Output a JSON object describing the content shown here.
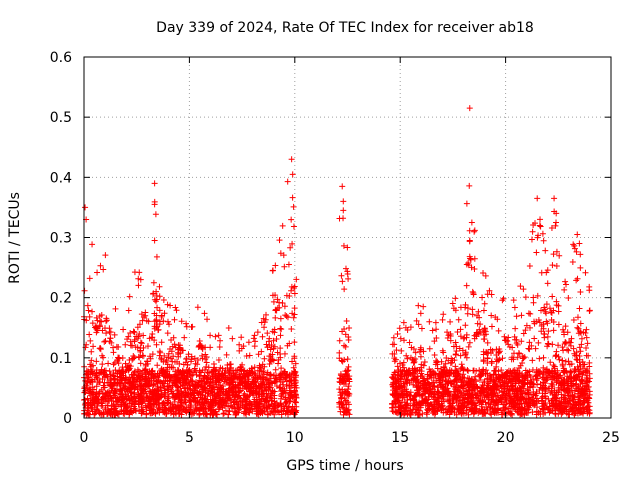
{
  "chart_data": {
    "type": "scatter",
    "title": "Day 339 of 2024, Rate Of TEC Index for receiver ab18",
    "xlabel": "GPS time / hours",
    "ylabel": "ROTI / TECUs",
    "xlim": [
      0,
      25
    ],
    "ylim": [
      0,
      0.6
    ],
    "x_ticks": [
      "0",
      "5",
      "10",
      "15",
      "20",
      "25"
    ],
    "y_ticks": [
      "0",
      "0.1",
      "0.2",
      "0.3",
      "0.4",
      "0.5",
      "0.6"
    ],
    "grid": true,
    "marker": "+",
    "color": "#ff0000",
    "coverage_hours": [
      [
        0,
        10.1
      ],
      [
        12.1,
        12.6
      ],
      [
        14.6,
        24.0
      ]
    ],
    "envelope": [
      {
        "x": 0.0,
        "y": 0.35
      },
      {
        "x": 0.5,
        "y": 0.27
      },
      {
        "x": 1.0,
        "y": 0.29
      },
      {
        "x": 1.5,
        "y": 0.2
      },
      {
        "x": 2.0,
        "y": 0.16
      },
      {
        "x": 2.5,
        "y": 0.27
      },
      {
        "x": 3.0,
        "y": 0.16
      },
      {
        "x": 3.3,
        "y": 0.39
      },
      {
        "x": 4.0,
        "y": 0.19
      },
      {
        "x": 4.5,
        "y": 0.2
      },
      {
        "x": 5.0,
        "y": 0.15
      },
      {
        "x": 5.5,
        "y": 0.21
      },
      {
        "x": 6.0,
        "y": 0.15
      },
      {
        "x": 6.5,
        "y": 0.13
      },
      {
        "x": 7.0,
        "y": 0.15
      },
      {
        "x": 7.5,
        "y": 0.14
      },
      {
        "x": 8.0,
        "y": 0.13
      },
      {
        "x": 8.5,
        "y": 0.16
      },
      {
        "x": 9.0,
        "y": 0.25
      },
      {
        "x": 9.3,
        "y": 0.35
      },
      {
        "x": 9.8,
        "y": 0.43
      },
      {
        "x": 10.0,
        "y": 0.36
      },
      {
        "x": 12.3,
        "y": 0.39
      },
      {
        "x": 12.5,
        "y": 0.28
      },
      {
        "x": 15.0,
        "y": 0.15
      },
      {
        "x": 15.5,
        "y": 0.18
      },
      {
        "x": 16.0,
        "y": 0.19
      },
      {
        "x": 16.5,
        "y": 0.15
      },
      {
        "x": 17.0,
        "y": 0.17
      },
      {
        "x": 17.5,
        "y": 0.2
      },
      {
        "x": 18.0,
        "y": 0.22
      },
      {
        "x": 18.3,
        "y": 0.52
      },
      {
        "x": 18.5,
        "y": 0.33
      },
      {
        "x": 19.0,
        "y": 0.25
      },
      {
        "x": 19.5,
        "y": 0.2
      },
      {
        "x": 20.0,
        "y": 0.22
      },
      {
        "x": 20.5,
        "y": 0.21
      },
      {
        "x": 21.0,
        "y": 0.27
      },
      {
        "x": 21.5,
        "y": 0.36
      },
      {
        "x": 22.0,
        "y": 0.28
      },
      {
        "x": 22.3,
        "y": 0.37
      },
      {
        "x": 22.8,
        "y": 0.23
      },
      {
        "x": 23.3,
        "y": 0.3
      },
      {
        "x": 23.8,
        "y": 0.25
      },
      {
        "x": 24.0,
        "y": 0.22
      }
    ],
    "outliers": [
      {
        "x": 0.05,
        "y": 0.35
      },
      {
        "x": 0.1,
        "y": 0.33
      },
      {
        "x": 3.35,
        "y": 0.39
      },
      {
        "x": 3.35,
        "y": 0.355
      },
      {
        "x": 3.35,
        "y": 0.295
      },
      {
        "x": 9.85,
        "y": 0.43
      },
      {
        "x": 9.9,
        "y": 0.405
      },
      {
        "x": 12.25,
        "y": 0.385
      },
      {
        "x": 12.3,
        "y": 0.36
      },
      {
        "x": 12.3,
        "y": 0.345
      },
      {
        "x": 18.3,
        "y": 0.515
      },
      {
        "x": 18.4,
        "y": 0.325
      },
      {
        "x": 18.3,
        "y": 0.295
      },
      {
        "x": 21.5,
        "y": 0.365
      },
      {
        "x": 22.3,
        "y": 0.365
      },
      {
        "x": 22.4,
        "y": 0.34
      },
      {
        "x": 23.4,
        "y": 0.305
      },
      {
        "x": 23.5,
        "y": 0.29
      }
    ]
  }
}
